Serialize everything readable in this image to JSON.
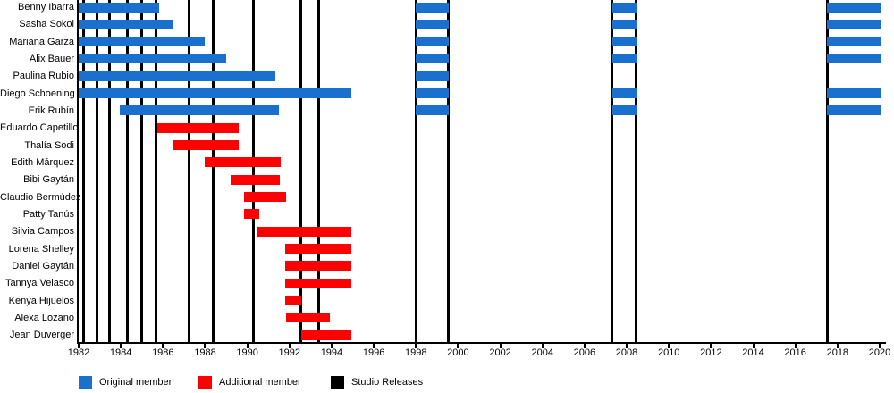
{
  "chart_data": {
    "type": "gantt-timeline",
    "x_axis": {
      "min": 1982,
      "max": 2020,
      "tick_step": 2,
      "tick_labels": [
        "1982",
        "1984",
        "1986",
        "1988",
        "1990",
        "1992",
        "1994",
        "1996",
        "1998",
        "2000",
        "2002",
        "2004",
        "2006",
        "2008",
        "2010",
        "2012",
        "2014",
        "2016",
        "2018",
        "2020"
      ]
    },
    "members": [
      {
        "name": "Benny Ibarra",
        "role": "original",
        "periods": [
          [
            1982.0,
            1985.8
          ],
          [
            1998.0,
            1999.55
          ],
          [
            2007.3,
            2008.45
          ],
          [
            2017.5,
            2020.1
          ]
        ]
      },
      {
        "name": "Sasha Sokol",
        "role": "original",
        "periods": [
          [
            1982.0,
            1986.45
          ],
          [
            1998.0,
            1999.55
          ],
          [
            2007.3,
            2008.45
          ],
          [
            2017.5,
            2020.1
          ]
        ]
      },
      {
        "name": "Mariana Garza",
        "role": "original",
        "periods": [
          [
            1982.0,
            1988.0
          ],
          [
            1998.0,
            1999.55
          ],
          [
            2007.3,
            2008.45
          ],
          [
            2017.5,
            2020.1
          ]
        ]
      },
      {
        "name": "Alix Bauer",
        "role": "original",
        "periods": [
          [
            1982.0,
            1989.0
          ],
          [
            1998.0,
            1999.55
          ],
          [
            2007.3,
            2008.45
          ],
          [
            2017.5,
            2020.1
          ]
        ]
      },
      {
        "name": "Paulina Rubio",
        "role": "original",
        "periods": [
          [
            1982.0,
            1991.35
          ],
          [
            1998.0,
            1999.55
          ]
        ]
      },
      {
        "name": "Diego Schoening",
        "role": "original",
        "periods": [
          [
            1982.0,
            1994.95
          ],
          [
            1998.0,
            1999.55
          ],
          [
            2007.3,
            2008.45
          ],
          [
            2017.5,
            2020.1
          ]
        ]
      },
      {
        "name": "Erik Rubín",
        "role": "original",
        "periods": [
          [
            1983.95,
            1991.5
          ],
          [
            1998.0,
            1999.55
          ],
          [
            2007.3,
            2008.45
          ],
          [
            2017.5,
            2020.1
          ]
        ]
      },
      {
        "name": "Eduardo Capetillo",
        "role": "additional",
        "periods": [
          [
            1985.75,
            1989.6
          ]
        ]
      },
      {
        "name": "Thalía Sodi",
        "role": "additional",
        "periods": [
          [
            1986.45,
            1989.6
          ]
        ]
      },
      {
        "name": "Edith Márquez",
        "role": "additional",
        "periods": [
          [
            1988.0,
            1991.6
          ]
        ]
      },
      {
        "name": "Bibi Gaytán",
        "role": "additional",
        "periods": [
          [
            1989.2,
            1991.55
          ]
        ]
      },
      {
        "name": "Claudio Bermúdez",
        "role": "additional",
        "periods": [
          [
            1989.85,
            1991.85
          ]
        ]
      },
      {
        "name": "Patty Tanús",
        "role": "additional",
        "periods": [
          [
            1989.85,
            1990.55
          ]
        ]
      },
      {
        "name": "Silvia Campos",
        "role": "additional",
        "periods": [
          [
            1990.45,
            1994.95
          ]
        ]
      },
      {
        "name": "Lorena Shelley",
        "role": "additional",
        "periods": [
          [
            1991.8,
            1994.95
          ]
        ]
      },
      {
        "name": "Daniel Gaytán",
        "role": "additional",
        "periods": [
          [
            1991.8,
            1994.95
          ]
        ]
      },
      {
        "name": "Tannya Velasco",
        "role": "additional",
        "periods": [
          [
            1991.8,
            1994.95
          ]
        ]
      },
      {
        "name": "Kenya Hijuelos",
        "role": "additional",
        "periods": [
          [
            1991.8,
            1992.55
          ]
        ]
      },
      {
        "name": "Alexa Lozano",
        "role": "additional",
        "periods": [
          [
            1991.85,
            1993.9
          ]
        ]
      },
      {
        "name": "Jean Duverger",
        "role": "additional",
        "periods": [
          [
            1992.55,
            1994.95
          ]
        ]
      }
    ],
    "releases": [
      1982.25,
      1982.85,
      1983.45,
      1984.3,
      1985.0,
      1985.65,
      1987.25,
      1988.4,
      1990.3,
      1992.55,
      1993.4,
      1998.0,
      1999.55,
      2007.3,
      2008.45,
      2017.5
    ],
    "legend": [
      {
        "label": "Original member",
        "color": "#1a70cf",
        "shape": "square"
      },
      {
        "label": "Additional member",
        "color": "#fb0303",
        "shape": "square"
      },
      {
        "label": "Studio Releases",
        "color": "#000000",
        "shape": "square"
      }
    ],
    "colors": {
      "original": "#1a70cf",
      "additional": "#fb0303",
      "release_line": "#000000",
      "axis": "#000000"
    }
  }
}
